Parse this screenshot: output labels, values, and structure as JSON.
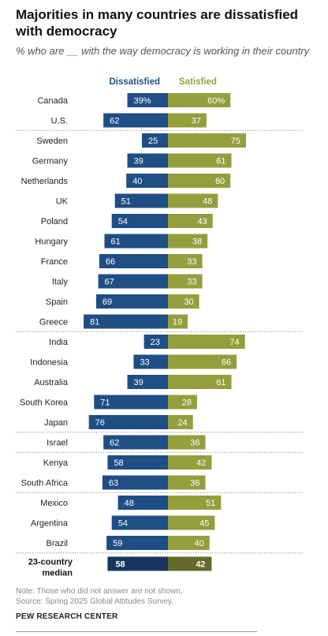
{
  "title": "Majorities in many countries are dissatisfied with democracy",
  "subtitle": "% who are __ with the way democracy is working in their country",
  "note": "Note: Those who did not answer are not shown.",
  "source": "Source: Spring 2025 Global Attitudes Survey.",
  "org": "PEW RESEARCH CENTER",
  "chart_data": {
    "type": "bar",
    "orientation": "diverging-horizontal",
    "series": [
      {
        "name": "Dissatisfied",
        "color": "#1f4e84"
      },
      {
        "name": "Satisfied",
        "color": "#959e3d"
      }
    ],
    "groups": [
      {
        "rows": [
          {
            "country": "Canada",
            "dissatisfied": "39%",
            "satisfied": "60%"
          },
          {
            "country": "U.S.",
            "dissatisfied": "62",
            "satisfied": "37"
          }
        ]
      },
      {
        "rows": [
          {
            "country": "Sweden",
            "dissatisfied": "25",
            "satisfied": "75"
          },
          {
            "country": "Germany",
            "dissatisfied": "39",
            "satisfied": "61"
          },
          {
            "country": "Netherlands",
            "dissatisfied": "40",
            "satisfied": "60"
          },
          {
            "country": "UK",
            "dissatisfied": "51",
            "satisfied": "48"
          },
          {
            "country": "Poland",
            "dissatisfied": "54",
            "satisfied": "43"
          },
          {
            "country": "Hungary",
            "dissatisfied": "61",
            "satisfied": "38"
          },
          {
            "country": "France",
            "dissatisfied": "66",
            "satisfied": "33"
          },
          {
            "country": "Italy",
            "dissatisfied": "67",
            "satisfied": "33"
          },
          {
            "country": "Spain",
            "dissatisfied": "69",
            "satisfied": "30"
          },
          {
            "country": "Greece",
            "dissatisfied": "81",
            "satisfied": "19"
          }
        ]
      },
      {
        "rows": [
          {
            "country": "India",
            "dissatisfied": "23",
            "satisfied": "74"
          },
          {
            "country": "Indonesia",
            "dissatisfied": "33",
            "satisfied": "66"
          },
          {
            "country": "Australia",
            "dissatisfied": "39",
            "satisfied": "61"
          },
          {
            "country": "South Korea",
            "dissatisfied": "71",
            "satisfied": "28"
          },
          {
            "country": "Japan",
            "dissatisfied": "76",
            "satisfied": "24"
          }
        ]
      },
      {
        "rows": [
          {
            "country": "Israel",
            "dissatisfied": "62",
            "satisfied": "36"
          }
        ]
      },
      {
        "rows": [
          {
            "country": "Kenya",
            "dissatisfied": "58",
            "satisfied": "42"
          },
          {
            "country": "South Africa",
            "dissatisfied": "63",
            "satisfied": "36"
          }
        ]
      },
      {
        "rows": [
          {
            "country": "Mexico",
            "dissatisfied": "48",
            "satisfied": "51"
          },
          {
            "country": "Argentina",
            "dissatisfied": "54",
            "satisfied": "45"
          },
          {
            "country": "Brazil",
            "dissatisfied": "59",
            "satisfied": "40"
          }
        ]
      }
    ],
    "median": {
      "label_line1": "23-country",
      "label_line2": "median",
      "dissatisfied": "58",
      "satisfied": "42"
    },
    "median_colors": {
      "dissatisfied": "#17365d",
      "satisfied": "#646b28"
    },
    "value_scale_max": 100,
    "legend": "top"
  }
}
